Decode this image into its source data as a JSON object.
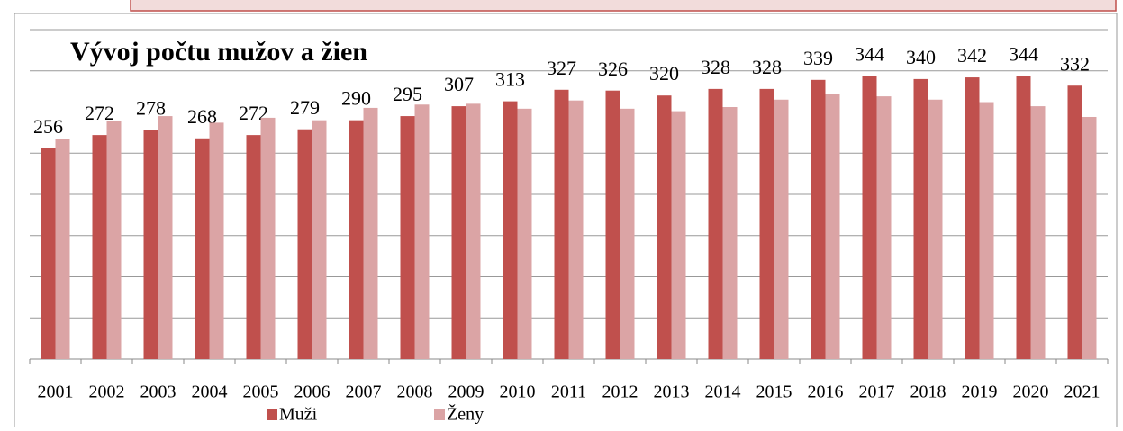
{
  "chart_data": {
    "type": "bar",
    "title": "Vývoj počtu mužov a žien",
    "categories": [
      "2001",
      "2002",
      "2003",
      "2004",
      "2005",
      "2006",
      "2007",
      "2008",
      "2009",
      "2010",
      "2011",
      "2012",
      "2013",
      "2014",
      "2015",
      "2016",
      "2017",
      "2018",
      "2019",
      "2020",
      "2021"
    ],
    "series": [
      {
        "name": "Muži",
        "color": "#c0504d",
        "values": [
          256,
          272,
          278,
          268,
          272,
          279,
          290,
          295,
          307,
          313,
          327,
          326,
          320,
          328,
          328,
          339,
          344,
          340,
          342,
          344,
          332
        ],
        "show_labels": true
      },
      {
        "name": "Ženy",
        "color": "#dba4a5",
        "values": [
          267,
          289,
          295,
          287,
          293,
          290,
          305,
          309,
          310,
          304,
          314,
          304,
          301,
          306,
          315,
          322,
          319,
          315,
          312,
          307,
          294
        ],
        "show_labels": false
      }
    ],
    "ylim": [
      0,
      400
    ],
    "yticks": [
      0,
      50,
      100,
      150,
      200,
      250,
      300,
      350,
      400
    ],
    "grid": true,
    "legend": "bottom"
  }
}
